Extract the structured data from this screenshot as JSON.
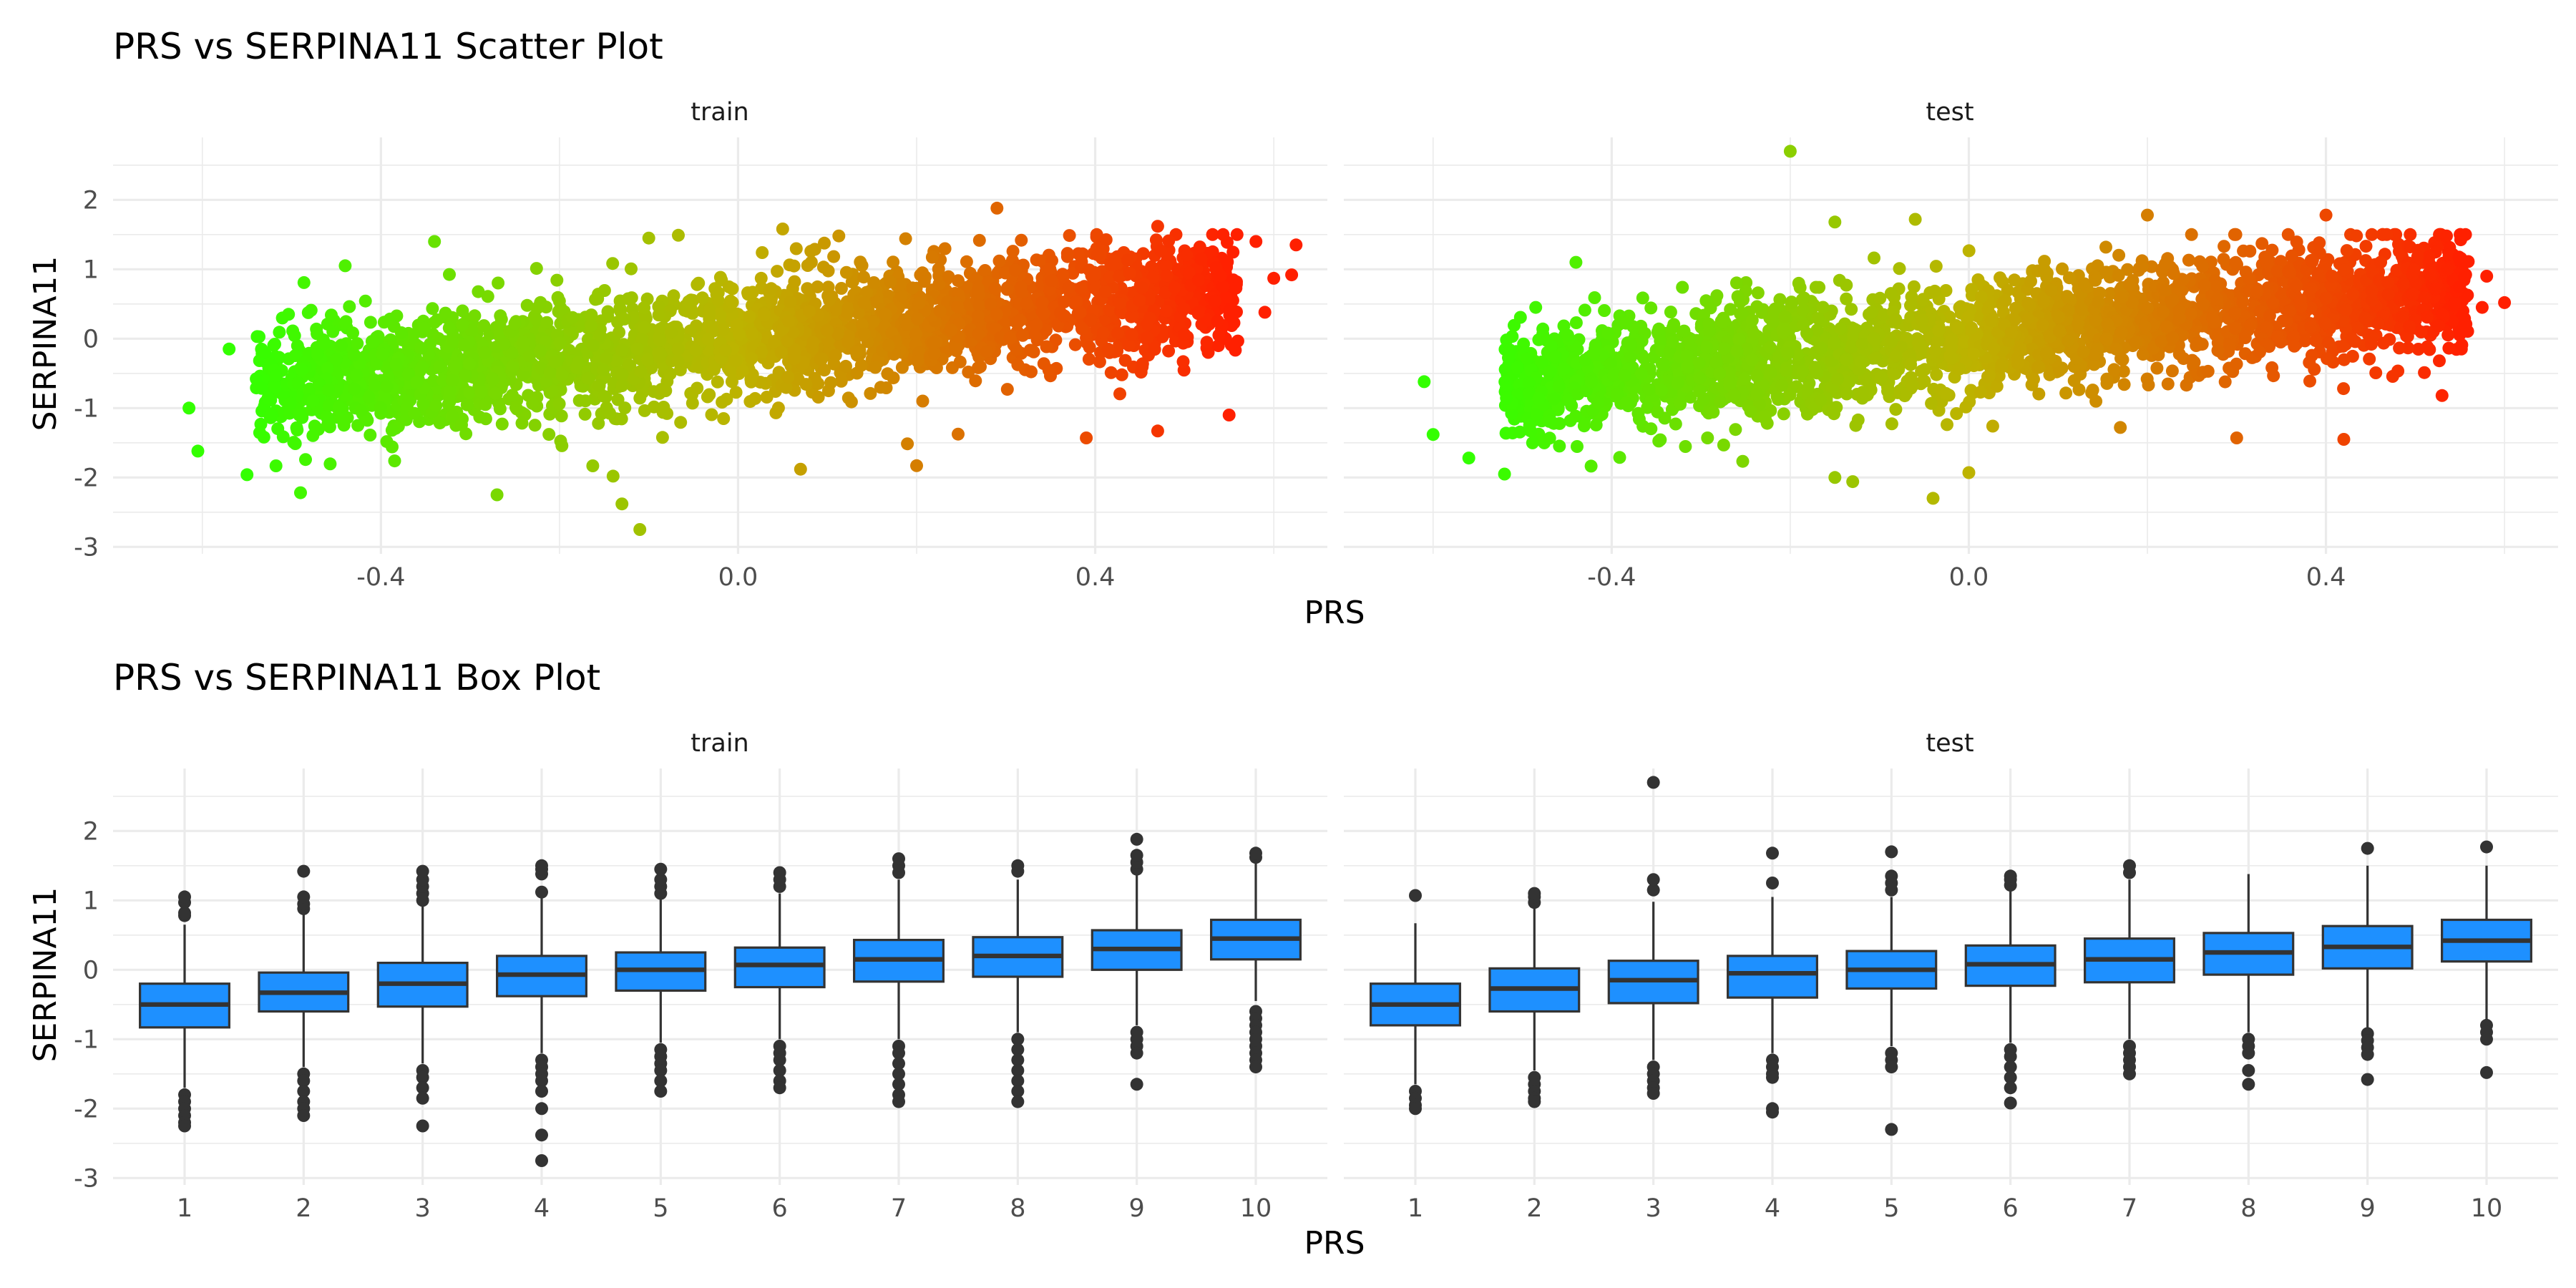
{
  "chart_data": [
    {
      "type": "scatter",
      "title": "PRS vs SERPINA11 Scatter Plot",
      "xlabel": "PRS",
      "ylabel": "SERPINA11",
      "facets": [
        "train",
        "test"
      ],
      "xlim": [
        -0.7,
        0.66
      ],
      "ylim": [
        -3.1,
        2.9
      ],
      "x_ticks": [
        -0.4,
        0.0,
        0.4
      ],
      "x_tick_labels": [
        "-0.4",
        "0.0",
        "0.4"
      ],
      "y_ticks": [
        -3,
        -2,
        -1,
        0,
        1,
        2
      ],
      "y_tick_labels": [
        "-3",
        "-2",
        "-1",
        "0",
        "1",
        "2"
      ],
      "grid": true,
      "legend": "none",
      "color_scale": {
        "low": "#33ff00",
        "mid": "#bdb300",
        "high": "#ff2000",
        "mapped_to": "PRS"
      },
      "trend_slope": 1.3,
      "panels": {
        "train": {
          "cloud_x_range": [
            -0.54,
            0.56
          ],
          "cloud_y_spread": 0.42,
          "points": [
            {
              "x": -0.605,
              "y": -1.62
            },
            {
              "x": -0.615,
              "y": -1.0
            },
            {
              "x": -0.57,
              "y": -0.15
            },
            {
              "x": -0.55,
              "y": -1.96
            },
            {
              "x": -0.49,
              "y": -2.22
            },
            {
              "x": -0.44,
              "y": 1.05
            },
            {
              "x": -0.34,
              "y": 1.4
            },
            {
              "x": -0.27,
              "y": -2.25
            },
            {
              "x": -0.14,
              "y": -1.98
            },
            {
              "x": -0.13,
              "y": -2.38
            },
            {
              "x": -0.11,
              "y": -2.75
            },
            {
              "x": -0.1,
              "y": 1.45
            },
            {
              "x": 0.05,
              "y": 1.58
            },
            {
              "x": 0.07,
              "y": -1.88
            },
            {
              "x": 0.2,
              "y": -1.83
            },
            {
              "x": 0.29,
              "y": 1.88
            },
            {
              "x": 0.39,
              "y": -1.43
            },
            {
              "x": 0.47,
              "y": 1.62
            },
            {
              "x": 0.47,
              "y": -1.33
            },
            {
              "x": 0.55,
              "y": -1.1
            },
            {
              "x": 0.58,
              "y": 1.4
            },
            {
              "x": 0.6,
              "y": 0.87
            },
            {
              "x": 0.62,
              "y": 0.92
            },
            {
              "x": 0.625,
              "y": 1.35
            },
            {
              "x": 0.59,
              "y": 0.38
            }
          ]
        },
        "test": {
          "cloud_x_range": [
            -0.52,
            0.56
          ],
          "cloud_y_spread": 0.42,
          "points": [
            {
              "x": -0.61,
              "y": -0.62
            },
            {
              "x": -0.6,
              "y": -1.38
            },
            {
              "x": -0.56,
              "y": -1.72
            },
            {
              "x": -0.52,
              "y": -1.95
            },
            {
              "x": -0.44,
              "y": 1.1
            },
            {
              "x": -0.2,
              "y": 2.7
            },
            {
              "x": -0.15,
              "y": 1.68
            },
            {
              "x": -0.15,
              "y": -2.0
            },
            {
              "x": -0.13,
              "y": -2.06
            },
            {
              "x": -0.06,
              "y": 1.72
            },
            {
              "x": -0.04,
              "y": -2.3
            },
            {
              "x": 0.0,
              "y": -1.93
            },
            {
              "x": 0.2,
              "y": 1.78
            },
            {
              "x": 0.3,
              "y": -1.43
            },
            {
              "x": 0.4,
              "y": 1.78
            },
            {
              "x": 0.42,
              "y": -1.45
            },
            {
              "x": 0.53,
              "y": -0.82
            },
            {
              "x": 0.535,
              "y": 1.48
            },
            {
              "x": 0.58,
              "y": 0.9
            },
            {
              "x": 0.6,
              "y": 0.52
            },
            {
              "x": 0.575,
              "y": 0.45
            }
          ]
        }
      }
    },
    {
      "type": "box",
      "title": "PRS vs SERPINA11 Box Plot",
      "xlabel": "PRS",
      "ylabel": "SERPINA11",
      "facets": [
        "train",
        "test"
      ],
      "categories": [
        "1",
        "2",
        "3",
        "4",
        "5",
        "6",
        "7",
        "8",
        "9",
        "10"
      ],
      "ylim": [
        -3.1,
        2.9
      ],
      "y_ticks": [
        -3,
        -2,
        -1,
        0,
        1,
        2
      ],
      "y_tick_labels": [
        "-3",
        "-2",
        "-1",
        "0",
        "1",
        "2"
      ],
      "grid": true,
      "legend": "none",
      "box_fill": "#1e90ff",
      "panels": {
        "train": [
          {
            "category": "1",
            "min": -1.7,
            "q1": -0.83,
            "median": -0.5,
            "q3": -0.2,
            "max": 0.65,
            "outliers": [
              -1.8,
              -1.9,
              -2.0,
              -2.1,
              -2.2,
              -2.25,
              0.78,
              0.82,
              0.97,
              1.05
            ]
          },
          {
            "category": "2",
            "min": -1.4,
            "q1": -0.6,
            "median": -0.33,
            "q3": -0.04,
            "max": 0.8,
            "outliers": [
              -1.5,
              -1.6,
              -1.75,
              -1.9,
              -2.0,
              -2.1,
              0.88,
              0.95,
              1.05,
              1.42
            ]
          },
          {
            "category": "3",
            "min": -1.35,
            "q1": -0.53,
            "median": -0.2,
            "q3": 0.1,
            "max": 0.95,
            "outliers": [
              -1.45,
              -1.55,
              -1.7,
              -1.85,
              -2.25,
              1.0,
              1.1,
              1.2,
              1.3,
              1.42
            ]
          },
          {
            "category": "4",
            "min": -1.2,
            "q1": -0.38,
            "median": -0.07,
            "q3": 0.2,
            "max": 1.05,
            "outliers": [
              -1.3,
              -1.4,
              -1.5,
              -1.6,
              -1.75,
              -2.0,
              -2.38,
              -2.75,
              1.12,
              1.38,
              1.45,
              1.5
            ]
          },
          {
            "category": "5",
            "min": -1.05,
            "q1": -0.3,
            "median": 0.0,
            "q3": 0.25,
            "max": 1.05,
            "outliers": [
              -1.15,
              -1.25,
              -1.35,
              -1.45,
              -1.6,
              -1.75,
              1.1,
              1.2,
              1.3,
              1.45
            ]
          },
          {
            "category": "6",
            "min": -1.0,
            "q1": -0.25,
            "median": 0.07,
            "q3": 0.32,
            "max": 1.1,
            "outliers": [
              -1.1,
              -1.2,
              -1.3,
              -1.45,
              -1.6,
              -1.7,
              1.2,
              1.3,
              1.4
            ]
          },
          {
            "category": "7",
            "min": -1.0,
            "q1": -0.17,
            "median": 0.15,
            "q3": 0.43,
            "max": 1.3,
            "outliers": [
              -1.1,
              -1.2,
              -1.35,
              -1.5,
              -1.65,
              -1.8,
              -1.9,
              1.4,
              1.5,
              1.6
            ]
          },
          {
            "category": "8",
            "min": -0.9,
            "q1": -0.1,
            "median": 0.2,
            "q3": 0.47,
            "max": 1.3,
            "outliers": [
              -1.0,
              -1.15,
              -1.3,
              -1.45,
              -1.6,
              -1.75,
              -1.9,
              1.42,
              1.5
            ]
          },
          {
            "category": "9",
            "min": -0.8,
            "q1": 0.0,
            "median": 0.3,
            "q3": 0.57,
            "max": 1.4,
            "outliers": [
              -0.9,
              -1.0,
              -1.1,
              -1.2,
              -1.65,
              1.45,
              1.55,
              1.65,
              1.88
            ]
          },
          {
            "category": "10",
            "min": -0.45,
            "q1": 0.15,
            "median": 0.45,
            "q3": 0.72,
            "max": 1.55,
            "outliers": [
              -0.6,
              -0.7,
              -0.8,
              -0.9,
              -1.0,
              -1.1,
              -1.2,
              -1.3,
              -1.4,
              1.62,
              1.68
            ]
          }
        ],
        "test": [
          {
            "category": "1",
            "min": -1.65,
            "q1": -0.8,
            "median": -0.5,
            "q3": -0.2,
            "max": 0.67,
            "outliers": [
              -1.75,
              -1.85,
              -1.95,
              -2.0,
              1.07
            ]
          },
          {
            "category": "2",
            "min": -1.45,
            "q1": -0.6,
            "median": -0.27,
            "q3": 0.02,
            "max": 0.9,
            "outliers": [
              -1.55,
              -1.65,
              -1.75,
              -1.85,
              -1.9,
              0.97,
              1.05,
              1.1
            ]
          },
          {
            "category": "3",
            "min": -1.3,
            "q1": -0.48,
            "median": -0.15,
            "q3": 0.13,
            "max": 0.98,
            "outliers": [
              -1.4,
              -1.5,
              -1.6,
              -1.7,
              -1.78,
              1.15,
              1.3,
              2.7
            ]
          },
          {
            "category": "4",
            "min": -1.2,
            "q1": -0.4,
            "median": -0.05,
            "q3": 0.2,
            "max": 1.05,
            "outliers": [
              -1.3,
              -1.4,
              -1.5,
              -1.55,
              -2.0,
              -2.05,
              1.25,
              1.68
            ]
          },
          {
            "category": "5",
            "min": -1.1,
            "q1": -0.27,
            "median": 0.0,
            "q3": 0.27,
            "max": 1.05,
            "outliers": [
              -1.2,
              -1.3,
              -1.4,
              -2.3,
              1.15,
              1.25,
              1.35,
              1.7
            ]
          },
          {
            "category": "6",
            "min": -1.05,
            "q1": -0.23,
            "median": 0.08,
            "q3": 0.35,
            "max": 1.15,
            "outliers": [
              -1.15,
              -1.25,
              -1.4,
              -1.55,
              -1.7,
              -1.92,
              1.22,
              1.3,
              1.35
            ]
          },
          {
            "category": "7",
            "min": -1.0,
            "q1": -0.18,
            "median": 0.15,
            "q3": 0.45,
            "max": 1.3,
            "outliers": [
              -1.1,
              -1.2,
              -1.3,
              -1.4,
              -1.5,
              1.4,
              1.5
            ]
          },
          {
            "category": "8",
            "min": -0.9,
            "q1": -0.07,
            "median": 0.25,
            "q3": 0.53,
            "max": 1.38,
            "outliers": [
              -1.0,
              -1.1,
              -1.2,
              -1.45,
              -1.65
            ]
          },
          {
            "category": "9",
            "min": -0.85,
            "q1": 0.02,
            "median": 0.33,
            "q3": 0.63,
            "max": 1.5,
            "outliers": [
              -0.92,
              -1.02,
              -1.12,
              -1.22,
              -1.58,
              1.75
            ]
          },
          {
            "category": "10",
            "min": -0.75,
            "q1": 0.12,
            "median": 0.42,
            "q3": 0.72,
            "max": 1.5,
            "outliers": [
              -0.8,
              -0.9,
              -1.0,
              -1.48,
              1.77
            ]
          }
        ]
      }
    }
  ]
}
